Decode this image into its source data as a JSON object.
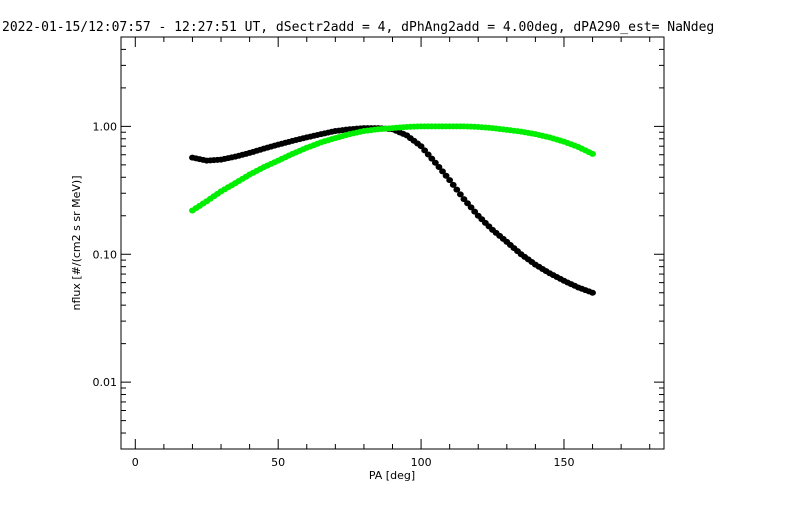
{
  "chart_data": {
    "type": "scatter",
    "title": "2022-01-15/12:07:57 - 12:27:51 UT, dSectr2add = 4, dPhAng2add = 4.00deg, dPA290_est=    NaNdeg",
    "xlabel": "PA [deg]",
    "ylabel": "nflux [#/(cm2 s sr MeV)]",
    "xlim": [
      -5,
      185
    ],
    "ylim": [
      0.003,
      5
    ],
    "yscale": "log",
    "grid": false,
    "x_ticks": [
      0,
      50,
      100,
      150
    ],
    "x_tick_labels": [
      "0",
      "50",
      "100",
      "150"
    ],
    "y_ticks": [
      0.01,
      0.1,
      1.0
    ],
    "y_tick_labels": [
      "0.01",
      "0.10",
      "1.00"
    ],
    "series": [
      {
        "color": "#000000",
        "x": [
          20,
          25,
          30,
          35,
          40,
          45,
          50,
          55,
          60,
          65,
          70,
          75,
          80,
          85,
          90,
          95,
          100,
          105,
          110,
          115,
          120,
          125,
          130,
          135,
          140,
          145,
          150,
          155,
          160
        ],
        "y": [
          0.57,
          0.54,
          0.55,
          0.58,
          0.62,
          0.67,
          0.72,
          0.77,
          0.82,
          0.87,
          0.92,
          0.95,
          0.97,
          0.97,
          0.95,
          0.85,
          0.7,
          0.52,
          0.38,
          0.27,
          0.2,
          0.155,
          0.125,
          0.1,
          0.083,
          0.071,
          0.062,
          0.055,
          0.05
        ]
      },
      {
        "color": "#00ee00",
        "x": [
          20,
          25,
          30,
          35,
          40,
          45,
          50,
          55,
          60,
          65,
          70,
          75,
          80,
          85,
          90,
          95,
          100,
          105,
          110,
          115,
          120,
          125,
          130,
          135,
          140,
          145,
          150,
          155,
          160
        ],
        "y": [
          0.22,
          0.26,
          0.31,
          0.36,
          0.42,
          0.48,
          0.54,
          0.61,
          0.68,
          0.75,
          0.81,
          0.87,
          0.92,
          0.95,
          0.97,
          0.99,
          1.0,
          1.0,
          1.0,
          1.0,
          0.99,
          0.97,
          0.94,
          0.91,
          0.87,
          0.82,
          0.76,
          0.69,
          0.61
        ]
      }
    ]
  }
}
